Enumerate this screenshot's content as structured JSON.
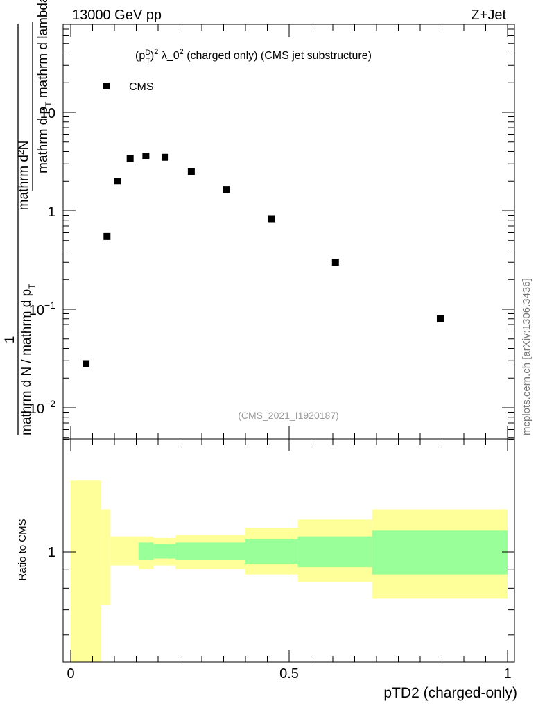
{
  "header": {
    "left": "13000 GeV pp",
    "right": "Z+Jet"
  },
  "watermark": "mcplots.cern.ch [arXiv:1306.3436]",
  "chart_data": [
    {
      "type": "scatter",
      "title": "(p_T^D)^2 λ_0^2 (charged only) (CMS jet substructure)",
      "title_parts": {
        "p": "(p",
        "sub": "T",
        "sup": "D",
        "rest": ")",
        "sq": "2",
        "lambda": " λ_0",
        "sq2": "2",
        "tail": " (charged only) (CMS jet substructure)"
      },
      "ylabel": {
        "numer": "mathrm d²N",
        "denom": "mathrm d p_T mathrm d lambda",
        "prefix_numer": "1",
        "prefix_denom": "mathrm d N / mathrm d p_T"
      },
      "ylabel_strings": {
        "top_numer": "mathrm d",
        "top_sup": "2",
        "top_numer2": "N",
        "top_denom": "mathrm d p",
        "top_denom_sub": "T",
        "top_denom2": " mathrm d lambda",
        "frac_one": "1",
        "bot_denom": "mathrm d N / mathrm d p",
        "bot_denom_sub": "T"
      },
      "yscale": "log",
      "ylim": [
        0.006,
        80
      ],
      "xlim": [
        0,
        1
      ],
      "yticks": [
        {
          "v": 0.01,
          "mant": "10",
          "exp": "−2"
        },
        {
          "v": 0.1,
          "mant": "10",
          "exp": "−1"
        },
        {
          "v": 1,
          "label": "1"
        },
        {
          "v": 10,
          "label": "10"
        }
      ],
      "series": [
        {
          "name": "CMS",
          "x": [
            0.035,
            0.083,
            0.107,
            0.136,
            0.172,
            0.216,
            0.276,
            0.356,
            0.46,
            0.606,
            0.846
          ],
          "y": [
            0.028,
            0.55,
            2.0,
            3.4,
            3.6,
            3.5,
            2.5,
            1.65,
            0.83,
            0.3,
            0.08
          ]
        }
      ],
      "legend": {
        "position": "top-left",
        "label": "CMS"
      },
      "annotation": "(CMS_2021_I1920187)"
    },
    {
      "type": "area",
      "ylabel": "Ratio to CMS",
      "xlabel": "pTD2 (charged-only)",
      "xlim": [
        0,
        1
      ],
      "ylim": [
        0.5,
        2
      ],
      "yscale": "log",
      "yticks": [
        {
          "v": 1,
          "label": "1"
        }
      ],
      "xticks": [
        {
          "v": 0,
          "label": "0"
        },
        {
          "v": 0.5,
          "label": "0.5"
        },
        {
          "v": 1,
          "label": "1"
        }
      ],
      "bands": [
        {
          "x0": 0.0,
          "x1": 0.07,
          "outer": [
            0.5,
            1.55
          ],
          "inner": null
        },
        {
          "x0": 0.07,
          "x1": 0.09,
          "outer": [
            0.72,
            1.3
          ],
          "inner": null
        },
        {
          "x0": 0.09,
          "x1": 0.155,
          "outer": [
            0.92,
            1.1
          ],
          "inner": null
        },
        {
          "x0": 0.155,
          "x1": 0.19,
          "outer": [
            0.9,
            1.1
          ],
          "inner": [
            0.95,
            1.06
          ]
        },
        {
          "x0": 0.19,
          "x1": 0.24,
          "outer": [
            0.92,
            1.09
          ],
          "inner": [
            0.96,
            1.05
          ]
        },
        {
          "x0": 0.24,
          "x1": 0.4,
          "outer": [
            0.9,
            1.11
          ],
          "inner": [
            0.95,
            1.06
          ]
        },
        {
          "x0": 0.4,
          "x1": 0.52,
          "outer": [
            0.87,
            1.16
          ],
          "inner": [
            0.93,
            1.08
          ]
        },
        {
          "x0": 0.52,
          "x1": 0.69,
          "outer": [
            0.83,
            1.22
          ],
          "inner": [
            0.91,
            1.1
          ]
        },
        {
          "x0": 0.69,
          "x1": 1.0,
          "outer": [
            0.75,
            1.3
          ],
          "inner": [
            0.87,
            1.14
          ]
        }
      ],
      "colors": {
        "outer": "#ffff99",
        "inner": "#99ff99"
      }
    }
  ]
}
